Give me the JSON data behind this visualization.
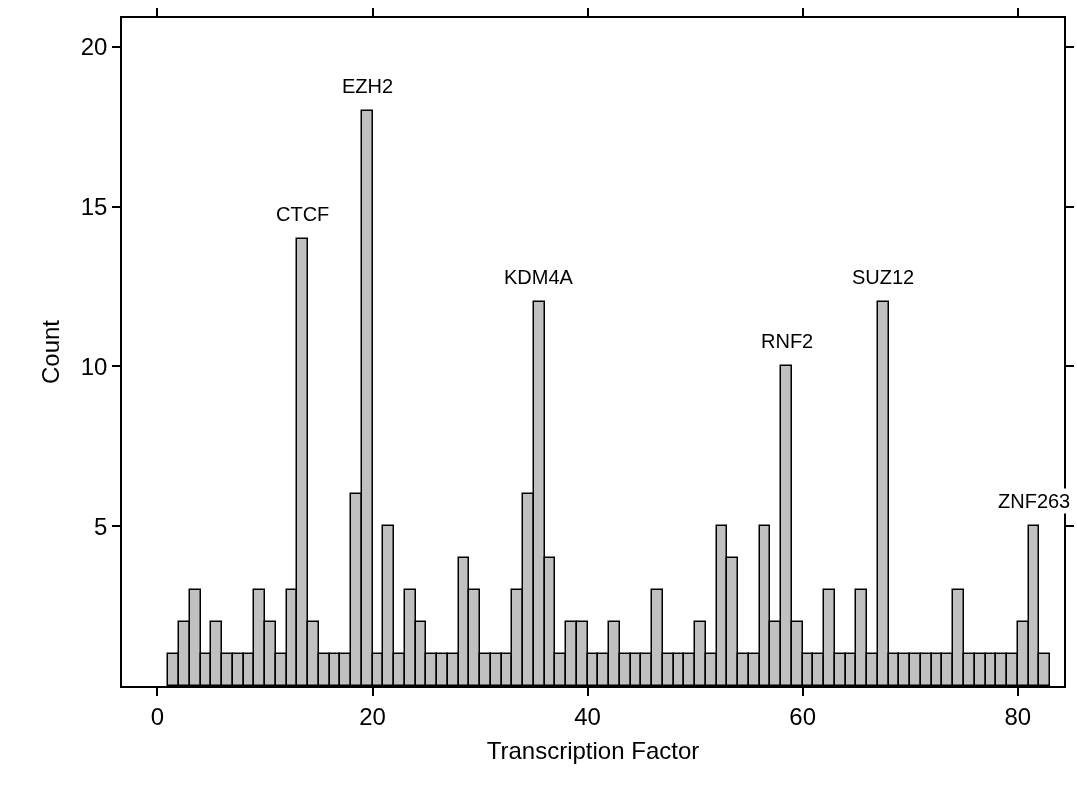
{
  "chart_data": {
    "type": "histogram",
    "xlabel": "Transcription Factor",
    "ylabel": "Count",
    "color": "#c0c0c0",
    "bins": [
      1,
      2,
      3,
      4,
      5,
      6,
      7,
      8,
      9,
      10,
      11,
      12,
      13,
      14,
      15,
      16,
      17,
      18,
      19,
      20,
      21,
      22,
      23,
      24,
      25,
      26,
      27,
      28,
      29,
      30,
      31,
      32,
      33,
      34,
      35,
      36,
      37,
      38,
      39,
      40,
      41,
      42,
      43,
      44,
      45,
      46,
      47,
      48,
      49,
      50,
      51,
      52,
      53,
      54,
      55,
      56,
      57,
      58,
      59,
      60,
      61,
      62,
      63,
      64,
      65,
      66,
      67,
      68,
      69,
      70,
      71,
      72,
      73,
      74,
      75,
      76,
      77,
      78,
      79,
      80,
      81,
      82,
      83
    ],
    "values": [
      1,
      2,
      3,
      1,
      2,
      1,
      1,
      1,
      3,
      2,
      1,
      3,
      14,
      2,
      1,
      1,
      1,
      6,
      18,
      1,
      5,
      1,
      3,
      2,
      1,
      1,
      1,
      4,
      3,
      1,
      1,
      1,
      3,
      6,
      12,
      4,
      1,
      2,
      2,
      1,
      1,
      2,
      1,
      1,
      1,
      3,
      1,
      1,
      1,
      2,
      1,
      5,
      4,
      1,
      1,
      5,
      2,
      10,
      2,
      1,
      1,
      3,
      1,
      1,
      3,
      1,
      12,
      1,
      1,
      1,
      1,
      1,
      1,
      3,
      1,
      1,
      1,
      1,
      1,
      2,
      5,
      1
    ],
    "xlim": [
      -3.3,
      84.3
    ],
    "xticks": [
      0,
      20,
      40,
      60,
      80
    ],
    "ylim": [
      0,
      20.9
    ],
    "yticks": [
      5,
      10,
      15,
      20
    ],
    "annotations": [
      {
        "text": "CTCF",
        "x": 13.5,
        "y": 14
      },
      {
        "text": "EZH2",
        "x": 19.5,
        "y": 18
      },
      {
        "text": "KDM4A",
        "x": 35.5,
        "y": 12
      },
      {
        "text": "RNF2",
        "x": 58.5,
        "y": 10
      },
      {
        "text": "SUZ12",
        "x": 67.5,
        "y": 12
      },
      {
        "text": "ZNF263",
        "x": 81.5,
        "y": 5
      }
    ]
  }
}
